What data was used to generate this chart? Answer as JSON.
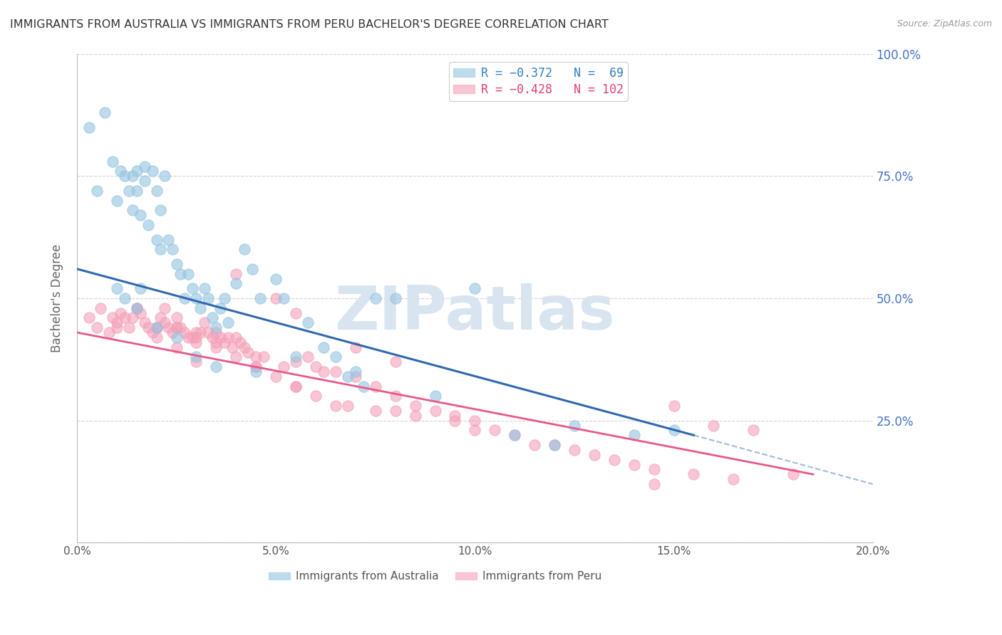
{
  "title": "IMMIGRANTS FROM AUSTRALIA VS IMMIGRANTS FROM PERU BACHELOR'S DEGREE CORRELATION CHART",
  "source": "Source: ZipAtlas.com",
  "ylabel": "Bachelor's Degree",
  "xlabel_ticks": [
    "0.0%",
    "5.0%",
    "10.0%",
    "15.0%",
    "20.0%"
  ],
  "xlabel_vals": [
    0.0,
    5.0,
    10.0,
    15.0,
    20.0
  ],
  "right_yticks": [
    "100.0%",
    "75.0%",
    "50.0%",
    "25.0%",
    ""
  ],
  "right_yvals": [
    100,
    75,
    50,
    25,
    0
  ],
  "australia_color": "#94c4e0",
  "peru_color": "#f4a0b8",
  "trend_australia_color": "#3068b0",
  "trend_peru_color": "#e85888",
  "watermark_text": "ZIPatlas",
  "aus_line_x0": 0.0,
  "aus_line_y0": 56.0,
  "aus_line_x1": 15.5,
  "aus_line_y1": 22.0,
  "aus_dash_x0": 15.5,
  "aus_dash_y0": 22.0,
  "aus_dash_x1": 20.0,
  "aus_dash_y1": 12.0,
  "peru_line_x0": 0.0,
  "peru_line_y0": 43.0,
  "peru_line_x1": 18.5,
  "peru_line_y1": 14.0,
  "xlim": [
    0,
    20
  ],
  "ylim": [
    0,
    100
  ],
  "figsize": [
    14.06,
    8.92
  ],
  "dpi": 100,
  "background_color": "#ffffff",
  "grid_color": "#c8c8c8",
  "title_color": "#333333",
  "right_axis_color": "#4472c4",
  "watermark_color": "#d8e4f0",
  "R_australia": -0.372,
  "N_australia": 69,
  "R_peru": -0.428,
  "N_peru": 102,
  "aus_scatter_x": [
    0.3,
    0.5,
    0.7,
    0.9,
    1.0,
    1.1,
    1.2,
    1.3,
    1.4,
    1.4,
    1.5,
    1.5,
    1.6,
    1.7,
    1.7,
    1.8,
    1.9,
    2.0,
    2.0,
    2.1,
    2.1,
    2.2,
    2.3,
    2.4,
    2.5,
    2.6,
    2.7,
    2.8,
    2.9,
    3.0,
    3.1,
    3.2,
    3.3,
    3.4,
    3.5,
    3.6,
    3.7,
    3.8,
    4.0,
    4.2,
    4.4,
    4.6,
    5.0,
    5.2,
    5.5,
    5.8,
    6.2,
    6.5,
    6.8,
    7.0,
    7.2,
    8.0,
    9.0,
    10.0,
    11.0,
    12.0,
    12.5,
    14.0,
    15.0,
    1.0,
    1.2,
    1.5,
    1.6,
    2.0,
    2.5,
    3.0,
    3.5,
    4.5,
    7.5
  ],
  "aus_scatter_y": [
    85,
    72,
    88,
    78,
    70,
    76,
    75,
    72,
    75,
    68,
    76,
    72,
    67,
    77,
    74,
    65,
    76,
    62,
    72,
    60,
    68,
    75,
    62,
    60,
    57,
    55,
    50,
    55,
    52,
    50,
    48,
    52,
    50,
    46,
    44,
    48,
    50,
    45,
    53,
    60,
    56,
    50,
    54,
    50,
    38,
    45,
    40,
    38,
    34,
    35,
    32,
    50,
    30,
    52,
    22,
    20,
    24,
    22,
    23,
    52,
    50,
    48,
    52,
    44,
    42,
    38,
    36,
    35,
    50
  ],
  "peru_scatter_x": [
    0.3,
    0.5,
    0.6,
    0.8,
    0.9,
    1.0,
    1.1,
    1.2,
    1.3,
    1.4,
    1.5,
    1.6,
    1.7,
    1.8,
    1.9,
    2.0,
    2.0,
    2.1,
    2.2,
    2.2,
    2.3,
    2.4,
    2.5,
    2.5,
    2.6,
    2.7,
    2.8,
    2.9,
    3.0,
    3.0,
    3.1,
    3.2,
    3.3,
    3.4,
    3.5,
    3.6,
    3.7,
    3.8,
    3.9,
    4.0,
    4.1,
    4.2,
    4.3,
    4.5,
    4.7,
    5.0,
    5.2,
    5.5,
    5.8,
    6.0,
    6.2,
    6.5,
    7.0,
    7.5,
    8.0,
    8.5,
    9.0,
    10.0,
    11.0,
    12.0,
    13.0,
    14.0,
    15.0,
    16.0,
    17.0,
    18.0,
    1.0,
    1.5,
    2.0,
    2.5,
    3.0,
    3.5,
    4.0,
    4.5,
    5.0,
    5.5,
    6.0,
    6.8,
    7.5,
    8.5,
    9.5,
    10.5,
    11.5,
    12.5,
    13.5,
    14.5,
    15.5,
    3.0,
    4.0,
    5.5,
    7.0,
    8.0,
    9.5,
    2.5,
    3.5,
    4.5,
    5.5,
    6.5,
    8.0,
    10.0,
    14.5,
    16.5
  ],
  "peru_scatter_y": [
    46,
    44,
    48,
    43,
    46,
    45,
    47,
    46,
    44,
    46,
    48,
    47,
    45,
    44,
    43,
    44,
    42,
    46,
    45,
    48,
    44,
    43,
    44,
    46,
    44,
    43,
    42,
    42,
    43,
    41,
    43,
    45,
    43,
    42,
    43,
    42,
    41,
    42,
    40,
    42,
    41,
    40,
    39,
    38,
    38,
    50,
    36,
    37,
    38,
    36,
    35,
    35,
    34,
    32,
    30,
    28,
    27,
    25,
    22,
    20,
    18,
    16,
    28,
    24,
    23,
    14,
    44,
    48,
    44,
    40,
    42,
    40,
    38,
    36,
    34,
    32,
    30,
    28,
    27,
    26,
    25,
    23,
    20,
    19,
    17,
    15,
    14,
    37,
    55,
    47,
    40,
    37,
    26,
    44,
    41,
    36,
    32,
    28,
    27,
    23,
    12,
    13
  ]
}
